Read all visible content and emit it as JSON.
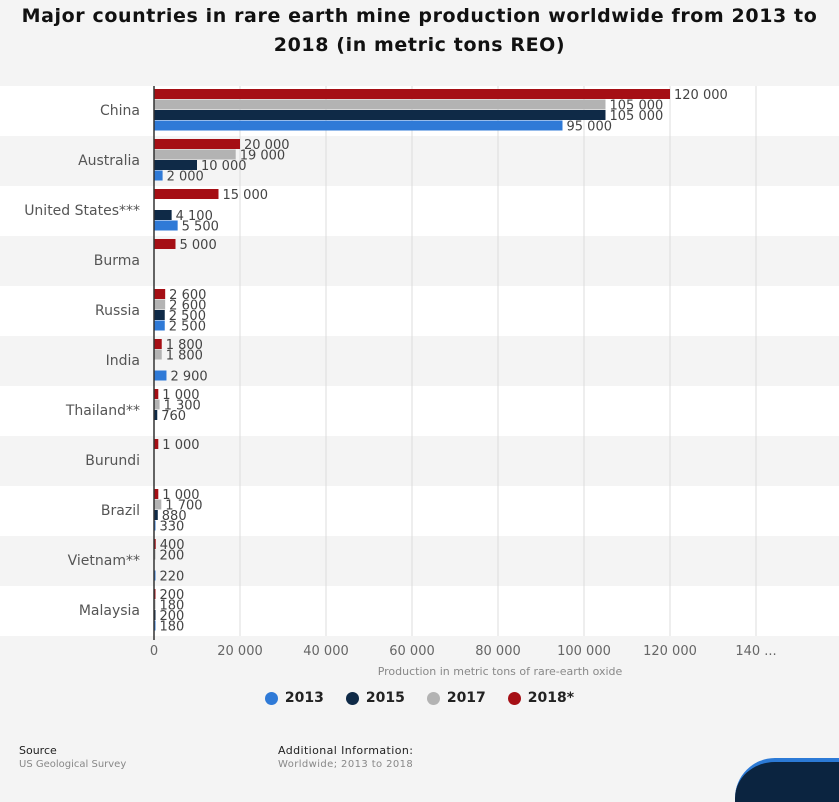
{
  "chart_data": {
    "type": "bar",
    "orientation": "horizontal",
    "title": "Major countries in rare earth mine production worldwide from 2013 to 2018 (in metric tons REO)",
    "xlabel": "Production in metric tons of rare-earth oxide",
    "ylabel": "",
    "xlim": [
      0,
      140000
    ],
    "x_ticks": [
      "0",
      "20 000",
      "40 000",
      "60 000",
      "80 000",
      "100 000",
      "120 000",
      "140 ..."
    ],
    "categories": [
      "China",
      "Australia",
      "United States***",
      "Burma",
      "Russia",
      "India",
      "Thailand**",
      "Burundi",
      "Brazil",
      "Vietnam**",
      "Malaysia"
    ],
    "series": [
      {
        "name": "2018*",
        "color": "#a50f15",
        "values": [
          120000,
          20000,
          15000,
          5000,
          2600,
          1800,
          1000,
          1000,
          1000,
          400,
          200
        ],
        "labels": [
          "120 000",
          "20 000",
          "15 000",
          "5 000",
          "2 600",
          "1 800",
          "1 000",
          "1 000",
          "1 000",
          "400",
          "200"
        ]
      },
      {
        "name": "2017",
        "color": "#b3b3b3",
        "values": [
          105000,
          19000,
          null,
          null,
          2600,
          1800,
          1300,
          null,
          1700,
          200,
          180
        ],
        "labels": [
          "105 000",
          "19 000",
          null,
          null,
          "2 600",
          "1 800",
          "1 300",
          null,
          "1 700",
          "200",
          "180"
        ]
      },
      {
        "name": "2015",
        "color": "#0f2a47",
        "values": [
          105000,
          10000,
          4100,
          null,
          2500,
          null,
          760,
          null,
          880,
          null,
          200
        ],
        "labels": [
          "105 000",
          "10 000",
          "4 100",
          null,
          "2 500",
          null,
          "760",
          null,
          "880",
          null,
          "200"
        ]
      },
      {
        "name": "2013",
        "color": "#2f7ad7",
        "values": [
          95000,
          2000,
          5500,
          null,
          2500,
          2900,
          null,
          null,
          330,
          220,
          180
        ],
        "labels": [
          "95 000",
          "2 000",
          "5 500",
          null,
          "2 500",
          "2 900",
          null,
          null,
          "330",
          "220",
          "180"
        ]
      }
    ],
    "legend": {
      "placement": "bottom",
      "order": [
        "2013",
        "2015",
        "2017",
        "2018*"
      ]
    },
    "grid": true
  },
  "footer": {
    "source_label": "Source",
    "source_value": "US Geological Survey",
    "additional_label": "Additional Information:",
    "additional_value": "Worldwide; 2013 to 2018"
  }
}
